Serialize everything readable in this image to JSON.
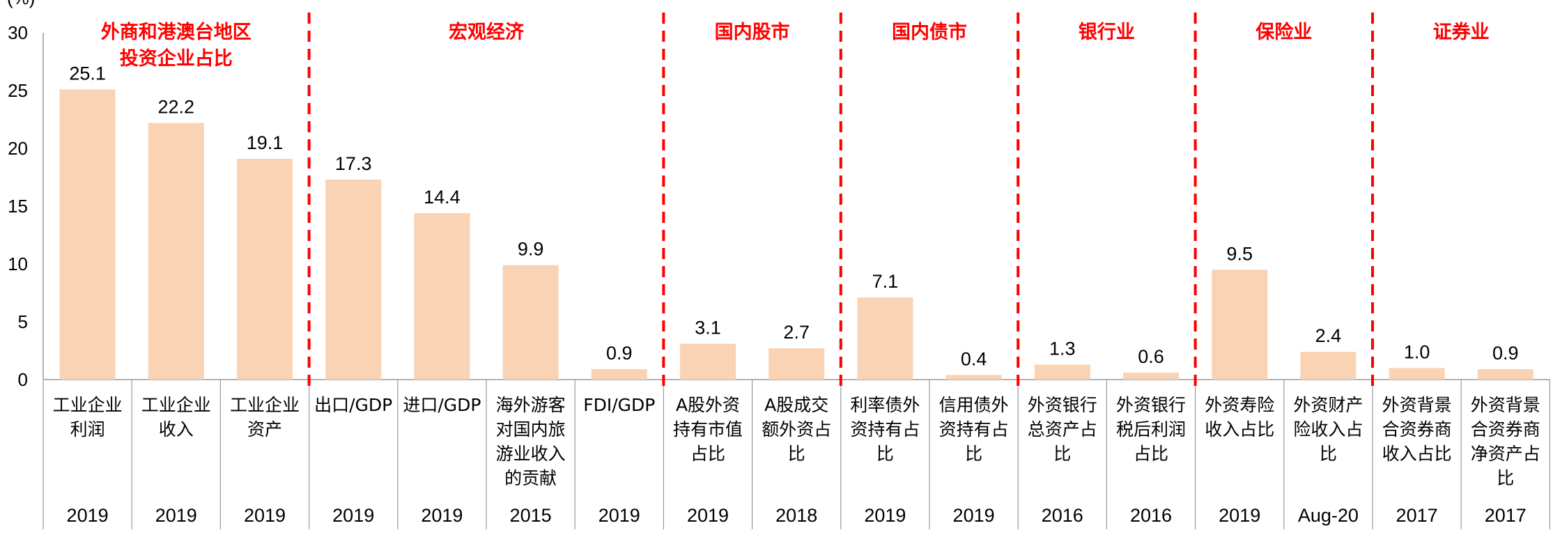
{
  "chart_data": {
    "type": "bar",
    "ylabel": "(%)",
    "ylim": [
      0,
      30
    ],
    "yticks": [
      0,
      5,
      10,
      15,
      20,
      25,
      30
    ],
    "grid": false,
    "legend": "none",
    "colors": {
      "bar": "#FAD3B4",
      "divider": "#FF0000",
      "group_title": "#FF0000",
      "axis": "#999999"
    },
    "bars": [
      {
        "label": [
          "工业企业",
          "利润"
        ],
        "year": "2019",
        "value": 25.1,
        "value_label": "25.1"
      },
      {
        "label": [
          "工业企业",
          "收入"
        ],
        "year": "2019",
        "value": 22.2,
        "value_label": "22.2"
      },
      {
        "label": [
          "工业企业",
          "资产"
        ],
        "year": "2019",
        "value": 19.1,
        "value_label": "19.1"
      },
      {
        "label": [
          "出口/GDP"
        ],
        "year": "2019",
        "value": 17.3,
        "value_label": "17.3"
      },
      {
        "label": [
          "进口/GDP"
        ],
        "year": "2019",
        "value": 14.4,
        "value_label": "14.4"
      },
      {
        "label": [
          "海外游客",
          "对国内旅",
          "游业收入",
          "的贡献"
        ],
        "year": "2015",
        "value": 9.9,
        "value_label": "9.9"
      },
      {
        "label": [
          "FDI/GDP"
        ],
        "year": "2019",
        "value": 0.9,
        "value_label": "0.9"
      },
      {
        "label": [
          "A股外资",
          "持有市值",
          "占比"
        ],
        "year": "2019",
        "value": 3.1,
        "value_label": "3.1"
      },
      {
        "label": [
          "A股成交",
          "额外资占",
          "比"
        ],
        "year": "2018",
        "value": 2.7,
        "value_label": "2.7"
      },
      {
        "label": [
          "利率债外",
          "资持有占",
          "比"
        ],
        "year": "2019",
        "value": 7.1,
        "value_label": "7.1"
      },
      {
        "label": [
          "信用债外",
          "资持有占",
          "比"
        ],
        "year": "2019",
        "value": 0.4,
        "value_label": "0.4"
      },
      {
        "label": [
          "外资银行",
          "总资产占",
          "比"
        ],
        "year": "2016",
        "value": 1.3,
        "value_label": "1.3"
      },
      {
        "label": [
          "外资银行",
          "税后利润",
          "占比"
        ],
        "year": "2016",
        "value": 0.6,
        "value_label": "0.6"
      },
      {
        "label": [
          "外资寿险",
          "收入占比"
        ],
        "year": "2019",
        "value": 9.5,
        "value_label": "9.5"
      },
      {
        "label": [
          "外资财产",
          "险收入占",
          "比"
        ],
        "year": "Aug-20",
        "value": 2.4,
        "value_label": "2.4"
      },
      {
        "label": [
          "外资背景",
          "合资券商",
          "收入占比"
        ],
        "year": "2017",
        "value": 1.0,
        "value_label": "1.0"
      },
      {
        "label": [
          "外资背景",
          "合资券商",
          "净资产占",
          "比"
        ],
        "year": "2017",
        "value": 0.9,
        "value_label": "0.9"
      }
    ],
    "groups": [
      {
        "title": [
          "外商和港澳台地区",
          "投资企业占比"
        ],
        "start": 0,
        "end": 2
      },
      {
        "title": [
          "宏观经济"
        ],
        "start": 3,
        "end": 6
      },
      {
        "title": [
          "国内股市"
        ],
        "start": 7,
        "end": 8
      },
      {
        "title": [
          "国内债市"
        ],
        "start": 9,
        "end": 10
      },
      {
        "title": [
          "银行业"
        ],
        "start": 11,
        "end": 12
      },
      {
        "title": [
          "保险业"
        ],
        "start": 13,
        "end": 14
      },
      {
        "title": [
          "证券业"
        ],
        "start": 15,
        "end": 16
      }
    ]
  }
}
